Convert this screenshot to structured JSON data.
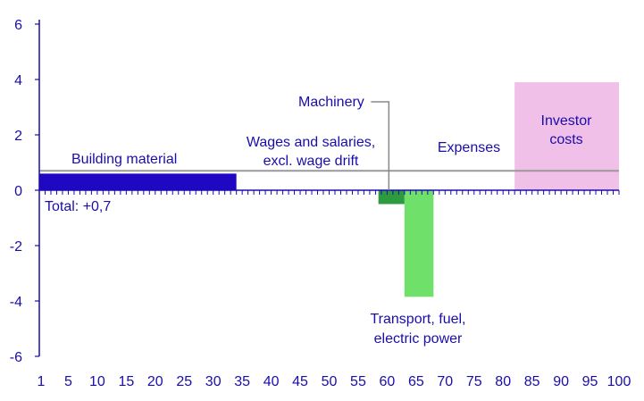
{
  "chart_data": {
    "type": "bar",
    "subtype": "variable-width (Marimekko) bar",
    "xlim": [
      0,
      100
    ],
    "ylim": [
      -6,
      6
    ],
    "x_ticks": [
      "1",
      "5",
      "10",
      "15",
      "20",
      "25",
      "30",
      "35",
      "40",
      "45",
      "50",
      "55",
      "60",
      "65",
      "70",
      "75",
      "80",
      "85",
      "90",
      "95",
      "100"
    ],
    "y_ticks": [
      "6",
      "4",
      "2",
      "0",
      "-2",
      "-4",
      "-6"
    ],
    "grid": false,
    "segments": [
      {
        "name": "Building material",
        "x_start": 0,
        "x_end": 34,
        "value": 0.6,
        "color": "#1f07c4"
      },
      {
        "name": "Wages and salaries, excl. wage drift",
        "x_start": 34,
        "x_end": 58,
        "value": 0.0,
        "color": "#1f07c4"
      },
      {
        "name": "Machinery",
        "x_start": 58.5,
        "x_end": 63,
        "value": -0.5,
        "color": "#2e9a3f"
      },
      {
        "name": "Transport, fuel, electric power",
        "x_start": 63,
        "x_end": 68,
        "value": -3.85,
        "color": "#6fe06a"
      },
      {
        "name": "Expenses",
        "x_start": 68,
        "x_end": 82,
        "value": 0.0,
        "color": "#6fe06a"
      },
      {
        "name": "Investor costs",
        "x_start": 82,
        "x_end": 100,
        "value": 3.9,
        "color": "#f0c0e8"
      }
    ],
    "total_line": {
      "value": 0.7,
      "color": "#999999"
    }
  },
  "labels": {
    "building_material": "Building material",
    "wages_line1": "Wages and salaries,",
    "wages_line2": "excl. wage drift",
    "machinery": "Machinery",
    "expenses": "Expenses",
    "investor_line1": "Investor",
    "investor_line2": "costs",
    "transport_line1": "Transport, fuel,",
    "transport_line2": "electric power",
    "total": "Total: +0,7"
  },
  "colors": {
    "axis": "#1a0dab",
    "text": "#1a0dab"
  }
}
